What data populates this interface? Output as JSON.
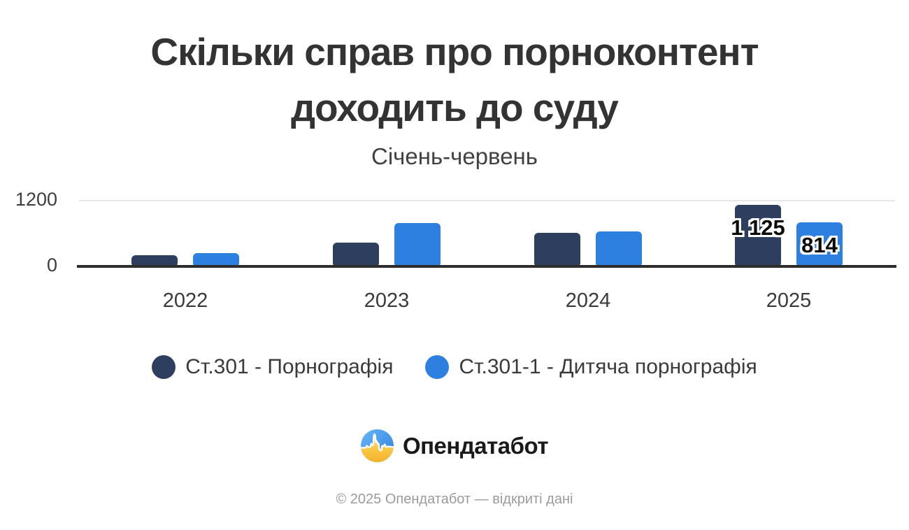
{
  "title": {
    "line1": "Скільки справ про порноконтент",
    "line2": "доходить до суду"
  },
  "subtitle": "Січень-червень",
  "chart_data": {
    "type": "bar",
    "title": "Скільки справ про порноконтент доходить до суду",
    "subtitle": "Січень-червень",
    "categories": [
      "2022",
      "2023",
      "2024",
      "2025"
    ],
    "series": [
      {
        "name": "Ст.301 - Порнографія",
        "color": "#2d3e5f",
        "values": [
          215,
          440,
          620,
          1125
        ],
        "value_labels": [
          null,
          null,
          null,
          "1 125"
        ]
      },
      {
        "name": "Ст.301-1 - Дитяча порнографія",
        "color": "#2e80e0",
        "values": [
          255,
          795,
          645,
          814
        ],
        "value_labels": [
          null,
          null,
          null,
          "814"
        ]
      }
    ],
    "ylim": [
      0,
      1200
    ],
    "yticks": [
      {
        "value": 1200,
        "label": "1200"
      },
      {
        "value": 0,
        "label": "0"
      }
    ],
    "grid": "single horizontal gridline at y=1200",
    "legend_position": "bottom-center"
  },
  "logo": {
    "text": "Опендатабот"
  },
  "footer": "© 2025 Опендатабот — відкриті дані",
  "colors": {
    "series1": "#2d3e5f",
    "series2": "#2e80e0",
    "title_text": "#333333",
    "axis_line": "#2d2d2d",
    "gridline": "#e7e7e7",
    "footer_text": "#9b9b9b"
  }
}
